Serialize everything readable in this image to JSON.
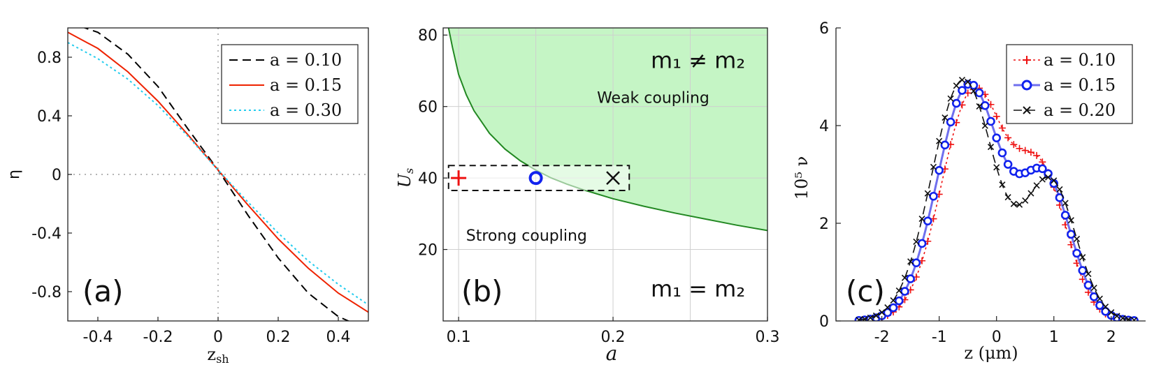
{
  "chart_data": [
    {
      "type": "line",
      "panel_label": "(a)",
      "xlabel": "z",
      "xlabel_sub": "sh",
      "ylabel": "η",
      "xlim": [
        -0.5,
        0.5
      ],
      "ylim": [
        -1.0,
        1.0
      ],
      "xticks": [
        -0.4,
        -0.2,
        0,
        0.2,
        0.4
      ],
      "xtick_labels": [
        "-0.4",
        "-0.2",
        "0",
        "0.2",
        "0.4"
      ],
      "yticks": [
        -0.8,
        -0.4,
        0,
        0.4,
        0.8
      ],
      "ytick_labels": [
        "-0.8",
        "-0.4",
        "0",
        "0.4",
        "0.8"
      ],
      "legend_position": "top-right",
      "reference_lines": [
        "x=0 dotted",
        "y=0 dotted"
      ],
      "series": [
        {
          "name": "a = 0.10",
          "color": "#000000",
          "style": "dashed",
          "x": [
            -0.5,
            -0.4,
            -0.3,
            -0.2,
            -0.1,
            0.0,
            0.1,
            0.2,
            0.3,
            0.4,
            0.5
          ],
          "y": [
            1.04,
            0.97,
            0.82,
            0.6,
            0.31,
            0.03,
            -0.28,
            -0.57,
            -0.81,
            -0.97,
            -1.06
          ]
        },
        {
          "name": "a = 0.15",
          "color": "#ee2200",
          "style": "solid",
          "x": [
            -0.5,
            -0.4,
            -0.3,
            -0.2,
            -0.1,
            0.0,
            0.1,
            0.2,
            0.3,
            0.4,
            0.5
          ],
          "y": [
            0.97,
            0.86,
            0.7,
            0.5,
            0.27,
            0.03,
            -0.21,
            -0.44,
            -0.64,
            -0.81,
            -0.94
          ]
        },
        {
          "name": "a = 0.30",
          "color": "#22ccee",
          "style": "dotted",
          "x": [
            -0.5,
            -0.4,
            -0.3,
            -0.2,
            -0.1,
            0.0,
            0.1,
            0.2,
            0.3,
            0.4,
            0.5
          ],
          "y": [
            0.9,
            0.79,
            0.65,
            0.47,
            0.26,
            0.03,
            -0.19,
            -0.4,
            -0.59,
            -0.75,
            -0.89
          ]
        }
      ]
    },
    {
      "type": "area",
      "panel_label": "(b)",
      "xlabel": "a",
      "ylabel": "U",
      "ylabel_sub": "s",
      "xlim": [
        0.09,
        0.3
      ],
      "ylim": [
        0,
        82
      ],
      "xticks": [
        0.1,
        0.2,
        0.3
      ],
      "xtick_labels": [
        "0.1",
        "0.2",
        "0.3"
      ],
      "yticks": [
        20,
        40,
        60,
        80
      ],
      "ytick_labels": [
        "20",
        "40",
        "60",
        "80"
      ],
      "grid": true,
      "fill_color": "#c5f5c5",
      "boundary_color": "#228822",
      "boundary": {
        "x": [
          0.0935,
          0.096,
          0.1,
          0.105,
          0.11,
          0.12,
          0.13,
          0.14,
          0.15,
          0.16,
          0.17,
          0.18,
          0.2,
          0.22,
          0.24,
          0.26,
          0.28,
          0.3
        ],
        "y": [
          82,
          76.6,
          69,
          63.3,
          58.8,
          52.5,
          48.1,
          44.8,
          42.2,
          40.0,
          38.3,
          36.8,
          34.2,
          32.1,
          30.2,
          28.5,
          26.8,
          25.3
        ]
      },
      "region_labels": [
        {
          "text": "m₁ ≠ m₂",
          "x": 0.255,
          "y": 73
        },
        {
          "text": "Weak coupling",
          "x": 0.226,
          "y": 62.5
        },
        {
          "text": "Strong coupling",
          "x": 0.144,
          "y": 24
        },
        {
          "text": "m₁ = m₂",
          "x": 0.255,
          "y": 9
        }
      ],
      "highlight_box": {
        "x": [
          0.0935,
          0.2105
        ],
        "y": [
          36.5,
          43.5
        ]
      },
      "markers": [
        {
          "x": 0.1,
          "y": 40,
          "symbol": "+",
          "color": "#ee1111"
        },
        {
          "x": 0.15,
          "y": 40,
          "symbol": "o",
          "color": "#1122ee"
        },
        {
          "x": 0.2,
          "y": 40,
          "symbol": "x",
          "color": "#111111"
        }
      ]
    },
    {
      "type": "line",
      "panel_label": "(c)",
      "xlabel": "z (μm)",
      "ylabel": "10⁵ ν",
      "xlim": [
        -2.8,
        2.6
      ],
      "ylim": [
        0,
        6
      ],
      "xticks": [
        -2,
        -1,
        0,
        1,
        2
      ],
      "xtick_labels": [
        "-2",
        "-1",
        "0",
        "1",
        "2"
      ],
      "yticks": [
        0,
        2,
        4,
        6
      ],
      "ytick_labels": [
        "0",
        "2",
        "4",
        "6"
      ],
      "legend_position": "top-right",
      "series": [
        {
          "name": "a = 0.10",
          "color": "#ee1111",
          "style": "dotted",
          "marker": "+",
          "mu1": -0.4,
          "A1": 4.7,
          "s1": 0.55,
          "mu2": 0.8,
          "A2": 2.82,
          "s2": 0.45
        },
        {
          "name": "a = 0.15",
          "color": "#6f6fee",
          "marker_color": "#1122ee",
          "style": "solid",
          "marker": "o",
          "mu1": -0.48,
          "A1": 4.82,
          "s1": 0.55,
          "mu2": 0.86,
          "A2": 2.82,
          "s2": 0.45
        },
        {
          "name": "a = 0.20",
          "color": "#111111",
          "style": "dashed",
          "marker": "x",
          "mu1": -0.58,
          "A1": 4.93,
          "s1": 0.55,
          "mu2": 0.94,
          "A2": 2.82,
          "s2": 0.45
        }
      ]
    }
  ]
}
